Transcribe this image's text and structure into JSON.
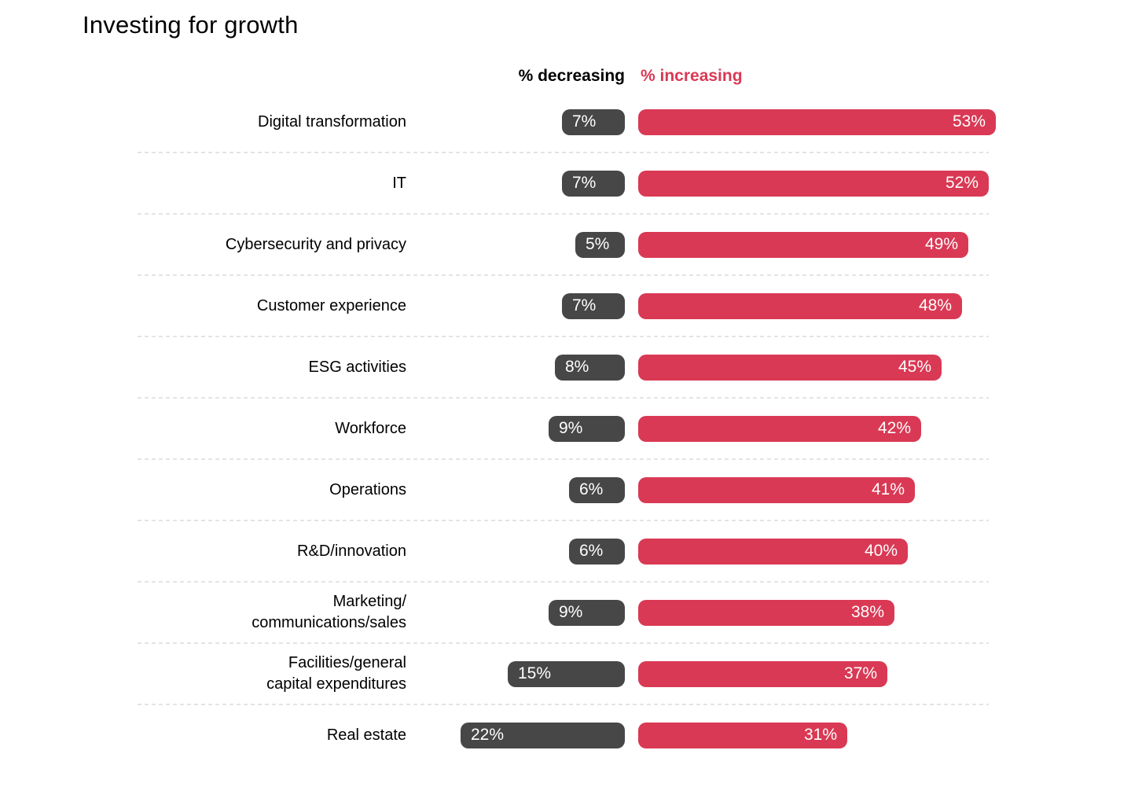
{
  "title": "Investing for growth",
  "legend": {
    "decreasing_label": "% decreasing",
    "increasing_label": "% increasing"
  },
  "colors": {
    "decreasing_bar": "#474747",
    "increasing_bar": "#D93954",
    "bar_value_text": "#ffffff",
    "label_text": "#000000",
    "separator": "#e4e4e4",
    "background": "#ffffff"
  },
  "chart_data": {
    "type": "bar",
    "orientation": "horizontal-diverging",
    "title": "Investing for growth",
    "legend_position": "top",
    "grid": "dashed horizontal separators between rows",
    "value_suffix": "%",
    "categories": [
      "Digital transformation",
      "IT",
      "Cybersecurity and privacy",
      "Customer experience",
      "ESG activities",
      "Workforce",
      "Operations",
      "R&D/innovation",
      "Marketing/\ncommunications/sales",
      "Facilities/general\ncapital expenditures",
      "Real estate"
    ],
    "series": [
      {
        "name": "% decreasing",
        "color": "#474747",
        "values": [
          7,
          7,
          5,
          7,
          8,
          9,
          6,
          6,
          9,
          15,
          22
        ]
      },
      {
        "name": "% increasing",
        "color": "#D93954",
        "values": [
          53,
          52,
          49,
          48,
          45,
          42,
          41,
          40,
          38,
          37,
          31
        ]
      }
    ]
  }
}
